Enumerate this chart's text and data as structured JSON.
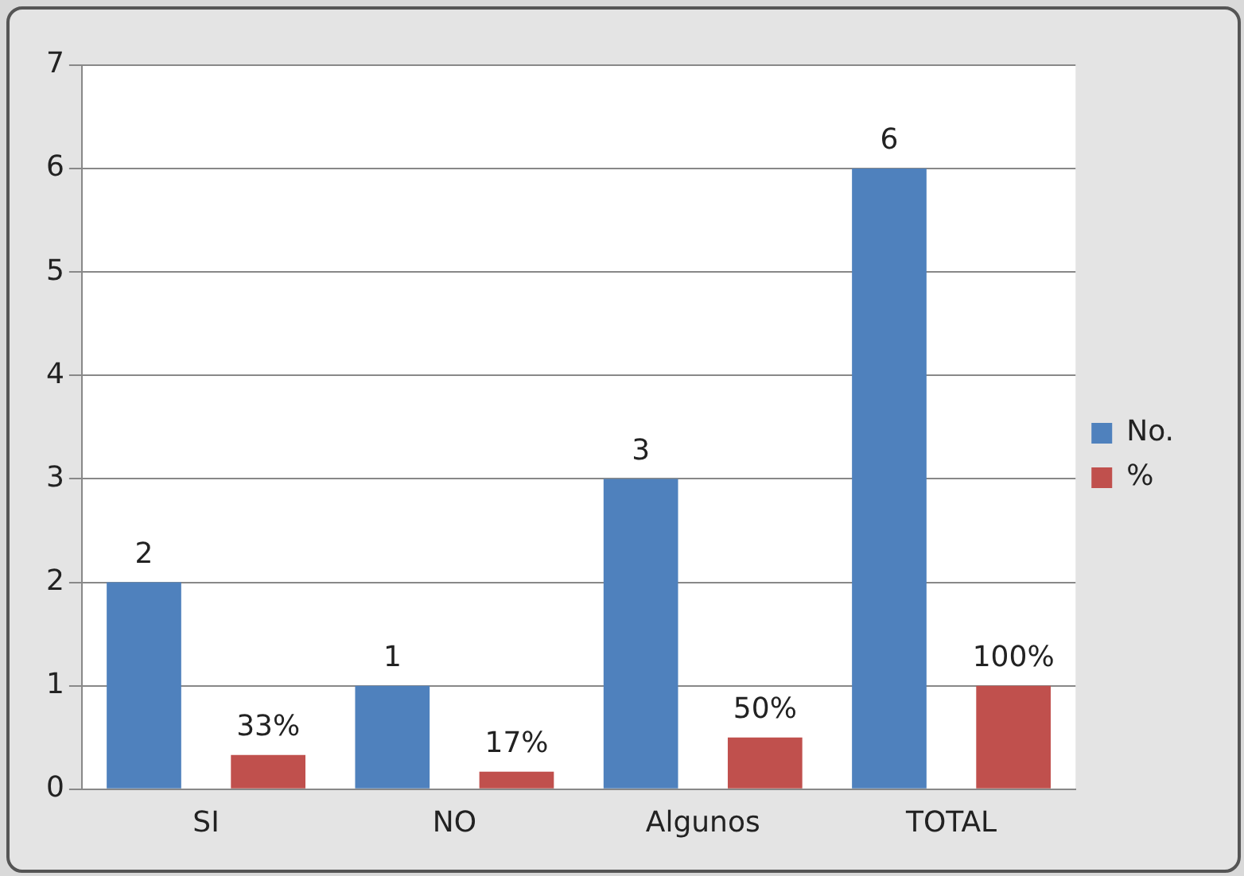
{
  "chart_data": {
    "type": "bar",
    "categories": [
      "SI",
      "NO",
      "Algunos",
      "TOTAL"
    ],
    "series": [
      {
        "name": "No.",
        "color": "#4f81bd",
        "values": [
          2,
          1,
          3,
          6
        ],
        "value_labels": [
          "2",
          "1",
          "3",
          "6"
        ]
      },
      {
        "name": "%",
        "color": "#c0504d",
        "values": [
          0.33,
          0.17,
          0.5,
          1
        ],
        "value_labels": [
          "33%",
          "17%",
          "50%",
          "100%"
        ]
      }
    ],
    "ylim": [
      0,
      7
    ],
    "yticks": [
      0,
      1,
      2,
      3,
      4,
      5,
      6,
      7
    ],
    "grid": "y",
    "legend": "right"
  }
}
